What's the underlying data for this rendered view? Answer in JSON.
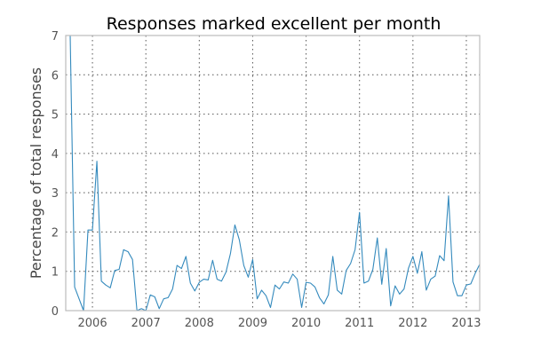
{
  "chart_data": {
    "type": "line",
    "title": "Responses marked excellent per month",
    "xlabel": "",
    "ylabel": "Percentage of total responses",
    "xlim": [
      "2005-07-01",
      "2013-04-01"
    ],
    "ylim": [
      0,
      7
    ],
    "y_ticks": [
      0,
      1,
      2,
      3,
      4,
      5,
      6,
      7
    ],
    "x_ticks": [
      {
        "date": "2006-01-01",
        "label": "2006"
      },
      {
        "date": "2007-01-01",
        "label": "2007"
      },
      {
        "date": "2008-01-01",
        "label": "2008"
      },
      {
        "date": "2009-01-01",
        "label": "2009"
      },
      {
        "date": "2010-01-01",
        "label": "2010"
      },
      {
        "date": "2011-01-01",
        "label": "2011"
      },
      {
        "date": "2012-01-01",
        "label": "2012"
      },
      {
        "date": "2013-01-01",
        "label": "2013"
      }
    ],
    "grid": true,
    "series": [
      {
        "color": "#348abd",
        "x": [
          "2005-08",
          "2005-09",
          "2005-10",
          "2005-11",
          "2005-12",
          "2006-01",
          "2006-02",
          "2006-03",
          "2006-04",
          "2006-05",
          "2006-06",
          "2006-07",
          "2006-08",
          "2006-09",
          "2006-10",
          "2006-11",
          "2006-12",
          "2007-01",
          "2007-02",
          "2007-03",
          "2007-04",
          "2007-05",
          "2007-06",
          "2007-07",
          "2007-08",
          "2007-09",
          "2007-10",
          "2007-11",
          "2007-12",
          "2008-01",
          "2008-02",
          "2008-03",
          "2008-04",
          "2008-05",
          "2008-06",
          "2008-07",
          "2008-08",
          "2008-09",
          "2008-10",
          "2008-11",
          "2008-12",
          "2009-01",
          "2009-02",
          "2009-03",
          "2009-04",
          "2009-05",
          "2009-06",
          "2009-07",
          "2009-08",
          "2009-09",
          "2009-10",
          "2009-11",
          "2009-12",
          "2010-01",
          "2010-02",
          "2010-03",
          "2010-04",
          "2010-05",
          "2010-06",
          "2010-07",
          "2010-08",
          "2010-09",
          "2010-10",
          "2010-11",
          "2010-12",
          "2011-01",
          "2011-02",
          "2011-03",
          "2011-04",
          "2011-05",
          "2011-06",
          "2011-07",
          "2011-08",
          "2011-09",
          "2011-10",
          "2011-11",
          "2011-12",
          "2012-01",
          "2012-02",
          "2012-03",
          "2012-04",
          "2012-05",
          "2012-06",
          "2012-07",
          "2012-08",
          "2012-09",
          "2012-10",
          "2012-11",
          "2012-12",
          "2013-01",
          "2013-02",
          "2013-03",
          "2013-04"
        ],
        "values": [
          7.0,
          0.6,
          0.3,
          0.0,
          2.05,
          2.05,
          3.8,
          0.75,
          0.65,
          0.58,
          1.02,
          1.05,
          1.55,
          1.5,
          1.3,
          0.0,
          0.05,
          0.0,
          0.4,
          0.35,
          0.05,
          0.3,
          0.33,
          0.55,
          1.15,
          1.07,
          1.38,
          0.7,
          0.5,
          0.72,
          0.8,
          0.78,
          1.28,
          0.8,
          0.75,
          0.98,
          1.45,
          2.18,
          1.8,
          1.15,
          0.85,
          1.3,
          0.3,
          0.52,
          0.38,
          0.08,
          0.65,
          0.55,
          0.73,
          0.7,
          0.93,
          0.8,
          0.08,
          0.72,
          0.7,
          0.6,
          0.33,
          0.17,
          0.4,
          1.38,
          0.52,
          0.42,
          1.02,
          1.2,
          1.55,
          2.5,
          0.7,
          0.75,
          1.05,
          1.85,
          0.67,
          1.58,
          0.12,
          0.63,
          0.42,
          0.55,
          1.08,
          1.38,
          0.95,
          1.5,
          0.52,
          0.8,
          0.88,
          1.4,
          1.27,
          2.92,
          0.73,
          0.38,
          0.38,
          0.65,
          0.68,
          0.95,
          1.18
        ]
      }
    ]
  }
}
